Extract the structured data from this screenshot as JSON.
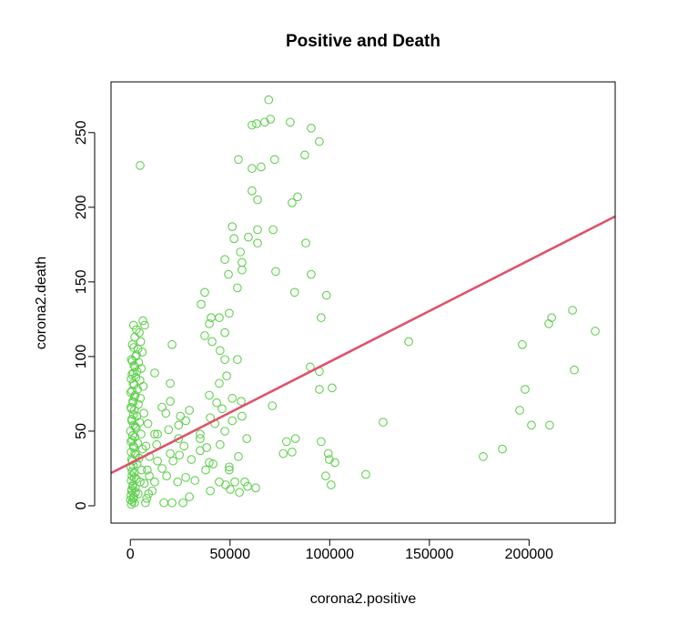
{
  "chart_data": {
    "type": "scatter",
    "title": "Positive and Death",
    "xlabel": "corona2.positive",
    "ylabel": "corona2.death",
    "xlim": [
      -9700,
      243200
    ],
    "ylim": [
      -11.6,
      284
    ],
    "grid": false,
    "x_ticks": [
      0,
      50000,
      100000,
      150000,
      200000
    ],
    "x_tick_labels": [
      "0",
      "50000",
      "100000",
      "150000",
      "200000"
    ],
    "y_ticks": [
      0,
      50,
      100,
      150,
      200,
      250
    ],
    "y_tick_labels": [
      "0",
      "50",
      "100",
      "150",
      "200",
      "250"
    ],
    "point_color": "#61D04F",
    "line_color": "#DF536B",
    "regression_line": {
      "intercept": 28.5,
      "slope": 0.00068
    },
    "points": [
      [
        4900,
        228
      ],
      [
        69400,
        272
      ],
      [
        61000,
        255
      ],
      [
        63300,
        256
      ],
      [
        67400,
        257
      ],
      [
        70300,
        259
      ],
      [
        80200,
        257
      ],
      [
        90700,
        253
      ],
      [
        94800,
        244
      ],
      [
        54200,
        232
      ],
      [
        72400,
        232
      ],
      [
        61000,
        226
      ],
      [
        65600,
        227
      ],
      [
        87500,
        235
      ],
      [
        61000,
        211
      ],
      [
        63800,
        205
      ],
      [
        81100,
        203
      ],
      [
        83900,
        207
      ],
      [
        51100,
        187
      ],
      [
        52000,
        179
      ],
      [
        59200,
        180
      ],
      [
        63800,
        185
      ],
      [
        63800,
        176
      ],
      [
        71600,
        185
      ],
      [
        88000,
        176
      ],
      [
        55200,
        170
      ],
      [
        56000,
        163
      ],
      [
        56000,
        158
      ],
      [
        47400,
        165
      ],
      [
        49200,
        155
      ],
      [
        72900,
        157
      ],
      [
        90700,
        155
      ],
      [
        53700,
        146
      ],
      [
        37300,
        143
      ],
      [
        35500,
        135
      ],
      [
        82400,
        143
      ],
      [
        98400,
        141
      ],
      [
        40500,
        126
      ],
      [
        44600,
        126
      ],
      [
        39600,
        122
      ],
      [
        49600,
        129
      ],
      [
        47400,
        116
      ],
      [
        37300,
        114
      ],
      [
        41000,
        110
      ],
      [
        95700,
        126
      ],
      [
        20900,
        108
      ],
      [
        45000,
        104
      ],
      [
        47400,
        98
      ],
      [
        53700,
        98
      ],
      [
        48300,
        87
      ],
      [
        44600,
        82
      ],
      [
        12200,
        89
      ],
      [
        20000,
        82
      ],
      [
        90200,
        93
      ],
      [
        94800,
        90
      ],
      [
        94800,
        78
      ],
      [
        101200,
        79
      ],
      [
        39600,
        74
      ],
      [
        51100,
        72
      ],
      [
        55600,
        70
      ],
      [
        43300,
        69
      ],
      [
        20000,
        70
      ],
      [
        15900,
        66
      ],
      [
        17800,
        62
      ],
      [
        29600,
        64
      ],
      [
        71200,
        67
      ],
      [
        46000,
        65
      ],
      [
        25100,
        60
      ],
      [
        27800,
        57
      ],
      [
        56000,
        60
      ],
      [
        51100,
        57
      ],
      [
        40100,
        59
      ],
      [
        42400,
        55
      ],
      [
        24200,
        54
      ],
      [
        19200,
        51
      ],
      [
        13600,
        48
      ],
      [
        47400,
        50
      ],
      [
        35000,
        48
      ],
      [
        35000,
        45
      ],
      [
        58400,
        45
      ],
      [
        13200,
        41
      ],
      [
        26900,
        40
      ],
      [
        24200,
        45
      ],
      [
        45000,
        41
      ],
      [
        38300,
        39
      ],
      [
        35000,
        37
      ],
      [
        54200,
        33
      ],
      [
        78300,
        43
      ],
      [
        82800,
        45
      ],
      [
        76700,
        35
      ],
      [
        81100,
        36
      ],
      [
        95700,
        43
      ],
      [
        99300,
        35
      ],
      [
        99800,
        31
      ],
      [
        102600,
        29
      ],
      [
        98000,
        20
      ],
      [
        100700,
        14
      ],
      [
        44600,
        16
      ],
      [
        47800,
        14
      ],
      [
        52400,
        16
      ],
      [
        57400,
        16
      ],
      [
        50100,
        11
      ],
      [
        54700,
        9
      ],
      [
        58800,
        13
      ],
      [
        62900,
        12
      ],
      [
        40100,
        10
      ],
      [
        29600,
        6
      ],
      [
        26400,
        2
      ],
      [
        20900,
        2
      ],
      [
        16800,
        2
      ],
      [
        39600,
        29
      ],
      [
        49600,
        26
      ],
      [
        49600,
        24
      ],
      [
        41500,
        28
      ],
      [
        37800,
        24
      ],
      [
        30600,
        31
      ],
      [
        32400,
        17
      ],
      [
        27800,
        19
      ],
      [
        23700,
        16
      ],
      [
        18200,
        20
      ],
      [
        13600,
        30
      ],
      [
        15900,
        25
      ],
      [
        12200,
        16
      ],
      [
        11000,
        10
      ],
      [
        21400,
        30
      ],
      [
        24600,
        34
      ],
      [
        20000,
        35
      ],
      [
        9500,
        20
      ],
      [
        8500,
        24
      ],
      [
        9100,
        8
      ],
      [
        7600,
        2
      ],
      [
        12200,
        48
      ],
      [
        118100,
        21
      ],
      [
        126800,
        56
      ],
      [
        139600,
        110
      ],
      [
        177000,
        33
      ],
      [
        186600,
        38
      ],
      [
        195300,
        64
      ],
      [
        196600,
        108
      ],
      [
        198000,
        78
      ],
      [
        201200,
        54
      ],
      [
        210300,
        54
      ],
      [
        209900,
        122
      ],
      [
        211300,
        126
      ],
      [
        221800,
        131
      ],
      [
        222700,
        91
      ],
      [
        233200,
        117
      ],
      [
        6300,
        124
      ],
      [
        1600,
        121
      ],
      [
        7200,
        121
      ],
      [
        3000,
        118
      ],
      [
        4500,
        116
      ],
      [
        2200,
        113
      ],
      [
        5200,
        110
      ],
      [
        1000,
        108
      ],
      [
        3800,
        105
      ],
      [
        6000,
        103
      ],
      [
        2600,
        100
      ],
      [
        500,
        98
      ],
      [
        4200,
        96
      ],
      [
        1800,
        94
      ],
      [
        5500,
        92
      ],
      [
        3300,
        90
      ],
      [
        800,
        88
      ],
      [
        2800,
        86
      ],
      [
        4800,
        84
      ],
      [
        1400,
        82
      ],
      [
        6500,
        80
      ],
      [
        3600,
        78
      ],
      [
        200,
        76
      ],
      [
        2400,
        74
      ],
      [
        5000,
        72
      ],
      [
        1200,
        70
      ],
      [
        4000,
        68
      ],
      [
        300,
        66
      ],
      [
        2000,
        64
      ],
      [
        6800,
        62
      ],
      [
        3200,
        60
      ],
      [
        700,
        58
      ],
      [
        4600,
        56
      ],
      [
        1600,
        54
      ],
      [
        2900,
        52
      ],
      [
        100,
        50
      ],
      [
        5300,
        48
      ],
      [
        2300,
        46
      ],
      [
        900,
        44
      ],
      [
        3700,
        42
      ],
      [
        1500,
        40
      ],
      [
        6100,
        38
      ],
      [
        400,
        36
      ],
      [
        2700,
        34
      ],
      [
        4400,
        32
      ],
      [
        1100,
        30
      ],
      [
        3400,
        28
      ],
      [
        200,
        26
      ],
      [
        5600,
        24
      ],
      [
        1900,
        22
      ],
      [
        800,
        20
      ],
      [
        3000,
        18
      ],
      [
        4900,
        16
      ],
      [
        1300,
        14
      ],
      [
        2500,
        12
      ],
      [
        600,
        10
      ],
      [
        3900,
        8
      ],
      [
        1700,
        6
      ],
      [
        100,
        4
      ],
      [
        2100,
        2
      ],
      [
        500,
        1
      ],
      [
        1000,
        3
      ],
      [
        1500,
        5
      ],
      [
        300,
        7
      ],
      [
        2600,
        9
      ],
      [
        700,
        11
      ],
      [
        1200,
        13
      ],
      [
        400,
        17
      ],
      [
        2000,
        19
      ],
      [
        900,
        23
      ],
      [
        1400,
        27
      ],
      [
        600,
        31
      ],
      [
        2200,
        35
      ],
      [
        1800,
        39
      ],
      [
        300,
        43
      ],
      [
        1100,
        47
      ],
      [
        2500,
        53
      ],
      [
        700,
        57
      ],
      [
        1600,
        61
      ],
      [
        500,
        65
      ],
      [
        1300,
        69
      ],
      [
        2100,
        73
      ],
      [
        800,
        77
      ],
      [
        1900,
        81
      ],
      [
        400,
        85
      ],
      [
        1500,
        89
      ],
      [
        2300,
        93
      ],
      [
        1000,
        97
      ],
      [
        3100,
        101
      ],
      [
        1700,
        106
      ],
      [
        7800,
        40
      ],
      [
        8800,
        55
      ],
      [
        9600,
        33
      ],
      [
        7000,
        15
      ],
      [
        8200,
        5
      ]
    ]
  }
}
